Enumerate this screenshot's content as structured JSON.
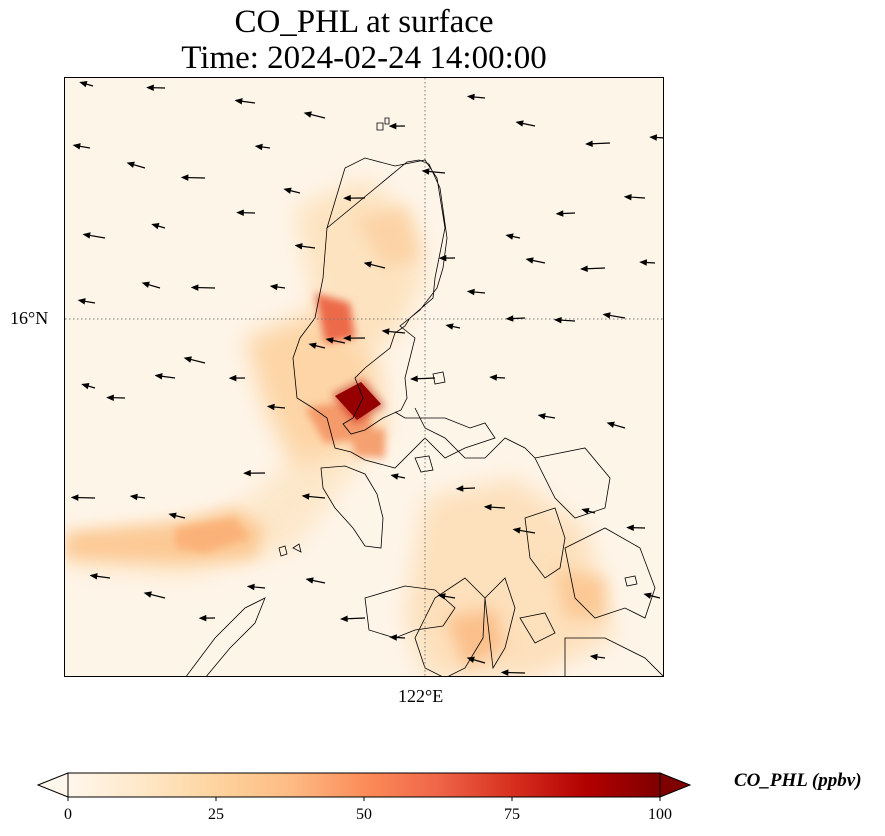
{
  "title": {
    "line1": "CO_PHL at surface",
    "line2": "Time: 2024-02-24 14:00:00"
  },
  "map": {
    "lat_label": "16°N",
    "lon_label": "122°E",
    "background_color": "#fef5e9",
    "gridline_style": "dotted"
  },
  "colorbar": {
    "title": "CO_PHL (ppbv)",
    "colormap": "OrRd",
    "range": [
      0,
      100
    ],
    "ticks": [
      "0",
      "25",
      "50",
      "75",
      "100"
    ],
    "extend": "both",
    "colors": [
      "#fff7ec",
      "#fee8c8",
      "#fdd49e",
      "#fdbb84",
      "#fc8d59",
      "#ef6548",
      "#d7301f",
      "#b30000",
      "#7f0000"
    ]
  },
  "plumes": [
    {
      "name": "manila-hotspot",
      "value": 100
    },
    {
      "name": "luzon-central-plume",
      "value": 60
    },
    {
      "name": "luzon-north-plume",
      "value": 20
    },
    {
      "name": "west-sea-plume",
      "value": 35
    },
    {
      "name": "southwest-plume",
      "value": 18
    },
    {
      "name": "visayas-plume",
      "value": 30
    }
  ],
  "wind_field": "northeasterly"
}
